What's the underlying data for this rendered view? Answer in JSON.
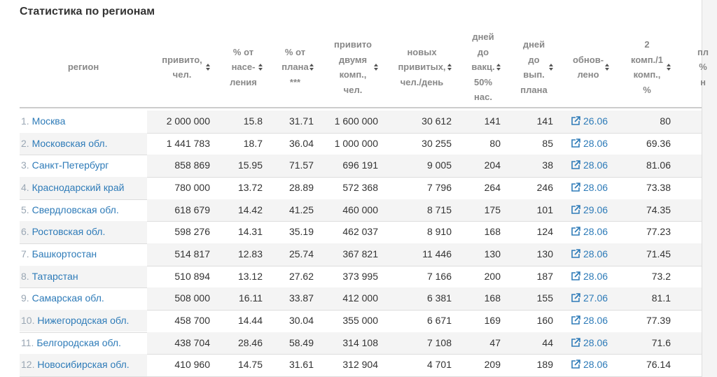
{
  "header": {
    "title": "Статистика по регионам"
  },
  "table": {
    "columns": [
      {
        "lines": [
          "регион"
        ]
      },
      {
        "lines": [
          "привито,",
          "чел."
        ]
      },
      {
        "lines": [
          "% от",
          "насе-",
          "ления"
        ]
      },
      {
        "lines": [
          "% от",
          "плана",
          "***"
        ]
      },
      {
        "lines": [
          "привито",
          "двумя",
          "комп.,",
          "чел."
        ]
      },
      {
        "lines": [
          "новых",
          "привитых,",
          "чел./день"
        ]
      },
      {
        "lines": [
          "дней",
          "до",
          "вакц.",
          "50%",
          "нас."
        ]
      },
      {
        "lines": [
          "дней",
          "до",
          "вып.",
          "плана"
        ]
      },
      {
        "lines": [
          "обнов-",
          "лено"
        ]
      },
      {
        "lines": [
          "2",
          "комп./1",
          "комп.,",
          "%"
        ]
      },
      {
        "lines": [
          "пл",
          "%",
          "н"
        ]
      }
    ],
    "rows": [
      {
        "num": "1.",
        "region": "Москва",
        "cells": [
          "2 000 000",
          "15.8",
          "31.71",
          "1 600 000",
          "30 612",
          "141",
          "141",
          "26.06",
          "80"
        ]
      },
      {
        "num": "2.",
        "region": "Московская обл.",
        "cells": [
          "1 441 783",
          "18.7",
          "36.04",
          "1 000 000",
          "30 255",
          "80",
          "85",
          "28.06",
          "69.36"
        ]
      },
      {
        "num": "3.",
        "region": "Санкт-Петербург",
        "cells": [
          "858 869",
          "15.95",
          "71.57",
          "696 191",
          "9 005",
          "204",
          "38",
          "28.06",
          "81.06"
        ]
      },
      {
        "num": "4.",
        "region": "Краснодарский край",
        "cells": [
          "780 000",
          "13.72",
          "28.89",
          "572 368",
          "7 796",
          "264",
          "246",
          "28.06",
          "73.38"
        ]
      },
      {
        "num": "5.",
        "region": "Свердловская обл.",
        "cells": [
          "618 679",
          "14.42",
          "41.25",
          "460 000",
          "8 715",
          "175",
          "101",
          "29.06",
          "74.35"
        ]
      },
      {
        "num": "6.",
        "region": "Ростовская обл.",
        "cells": [
          "598 276",
          "14.31",
          "35.19",
          "462 037",
          "8 910",
          "168",
          "124",
          "28.06",
          "77.23"
        ]
      },
      {
        "num": "7.",
        "region": "Башкортостан",
        "cells": [
          "514 817",
          "12.83",
          "25.74",
          "367 821",
          "11 446",
          "130",
          "130",
          "28.06",
          "71.45"
        ]
      },
      {
        "num": "8.",
        "region": "Татарстан",
        "cells": [
          "510 894",
          "13.12",
          "27.62",
          "373 995",
          "7 166",
          "200",
          "187",
          "28.06",
          "73.2"
        ]
      },
      {
        "num": "9.",
        "region": "Самарская обл.",
        "cells": [
          "508 000",
          "16.11",
          "33.87",
          "412 000",
          "6 381",
          "168",
          "155",
          "27.06",
          "81.1"
        ]
      },
      {
        "num": "10.",
        "region": "Нижегородская обл.",
        "cells": [
          "458 700",
          "14.44",
          "30.04",
          "355 000",
          "6 671",
          "169",
          "160",
          "28.06",
          "77.39"
        ]
      },
      {
        "num": "11.",
        "region": "Белгородская обл.",
        "cells": [
          "438 704",
          "28.46",
          "58.49",
          "314 108",
          "7 108",
          "47",
          "44",
          "28.06",
          "71.6"
        ]
      },
      {
        "num": "12.",
        "region": "Новосибирская обл.",
        "cells": [
          "410 960",
          "14.75",
          "31.61",
          "312 904",
          "4 701",
          "209",
          "189",
          "28.06",
          "76.14"
        ]
      }
    ]
  }
}
